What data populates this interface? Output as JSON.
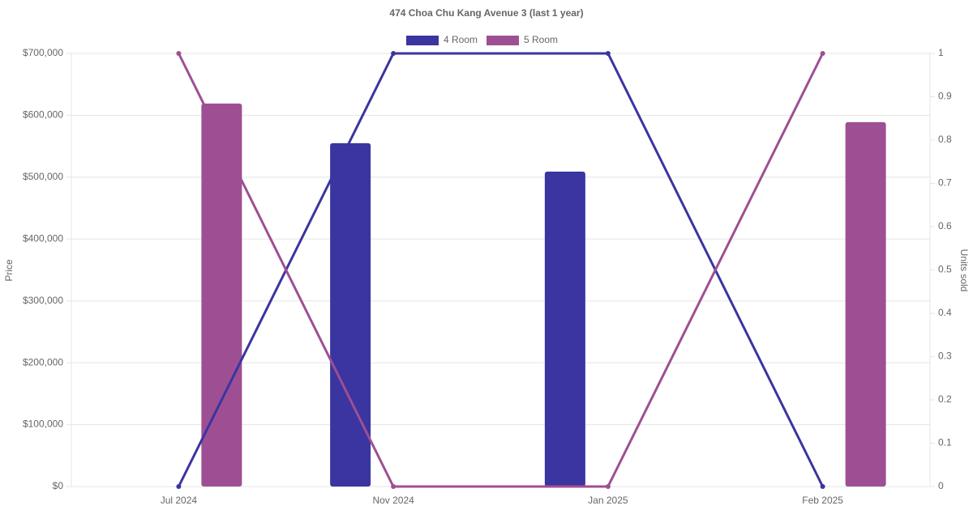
{
  "chart_data": {
    "type": "bar-line",
    "title": "474 Choa Chu Kang Avenue 3 (last 1 year)",
    "y_label": "Price",
    "y2_label": "Units sold",
    "categories": [
      "Jul 2024",
      "Nov 2024",
      "Jan 2025",
      "Feb 2025"
    ],
    "series": [
      {
        "name": "4 Room",
        "color": "#3a35a0",
        "values": [
          null,
          555000,
          509000,
          null
        ],
        "units_sold": [
          0,
          1,
          1,
          0
        ]
      },
      {
        "name": "5 Room",
        "color": "#9e4f93",
        "values": [
          619000,
          null,
          null,
          589000
        ],
        "units_sold": [
          1,
          0,
          0,
          1
        ]
      }
    ],
    "ylim": [
      0,
      700000
    ],
    "yticks": [
      {
        "value": 0,
        "label": "$0"
      },
      {
        "value": 100000,
        "label": "$100,000"
      },
      {
        "value": 200000,
        "label": "$200,000"
      },
      {
        "value": 300000,
        "label": "$300,000"
      },
      {
        "value": 400000,
        "label": "$400,000"
      },
      {
        "value": 500000,
        "label": "$500,000"
      },
      {
        "value": 600000,
        "label": "$600,000"
      },
      {
        "value": 700000,
        "label": "$700,000"
      }
    ],
    "y2lim": [
      0,
      1
    ],
    "y2ticks": [
      0,
      0.1,
      0.2,
      0.3,
      0.4,
      0.5,
      0.6,
      0.7,
      0.8,
      0.9,
      1
    ],
    "grid": true,
    "legend": "top"
  }
}
